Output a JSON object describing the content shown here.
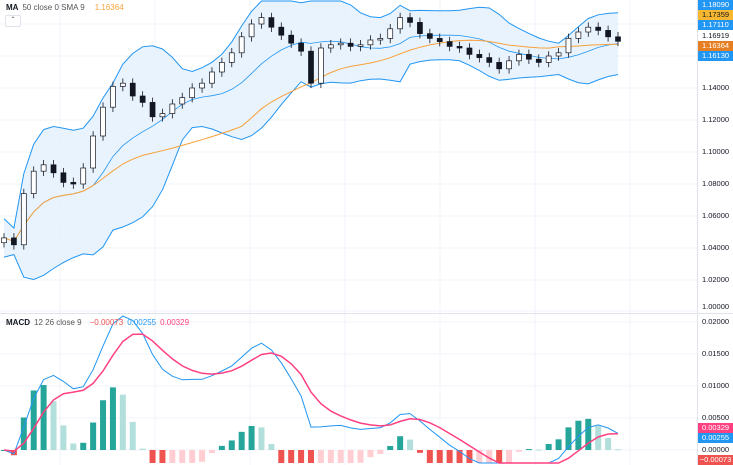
{
  "legend_price": {
    "name": "MA",
    "params": "50 close 0 SMA 9",
    "value": "1.16364"
  },
  "legend_macd": {
    "name": "MACD",
    "params": "12 26 close 9",
    "hist": "−0.00073",
    "macd": "0.00255",
    "signal": "0.00329"
  },
  "colors": {
    "ma": "#f7a13a",
    "bb": "#2196f3",
    "bb_fill": "#e3f0fc",
    "up": "#26a69a",
    "down": "#ef5350",
    "macd": "#2196f3",
    "signal": "#ff4081"
  },
  "price_tags": [
    {
      "label": "1.18090",
      "color": "#2196f3",
      "text": "#fff"
    },
    {
      "label": "1.17359",
      "color": "#f7b731",
      "text": "#131722"
    },
    {
      "label": "1.17110",
      "color": "#2196f3",
      "text": "#fff"
    },
    {
      "label": "1.16919",
      "color": "#ffffff",
      "text": "#131722"
    },
    {
      "label": "1.16364",
      "color": "#e67e22",
      "text": "#fff"
    },
    {
      "label": "1.16130",
      "color": "#2196f3",
      "text": "#fff"
    }
  ],
  "macd_tags": [
    {
      "label": "0.00329",
      "color": "#ff4081"
    },
    {
      "label": "0.00255",
      "color": "#2196f3"
    },
    {
      "label": "−0.00073",
      "color": "#ef5350"
    }
  ],
  "chart_data": [
    {
      "type": "candlestick",
      "price_axis_ticks": [
        "1.14000",
        "1.12000",
        "1.10000",
        "1.08000",
        "1.06000",
        "1.04000",
        "1.02000",
        "1.00000"
      ],
      "ylim": [
        1.0,
        1.19
      ],
      "grid": true,
      "closes": [
        1.0463,
        1.042,
        1.074,
        1.088,
        1.092,
        1.087,
        1.081,
        1.08,
        1.09,
        1.11,
        1.128,
        1.141,
        1.143,
        1.135,
        1.131,
        1.122,
        1.124,
        1.13,
        1.134,
        1.14,
        1.143,
        1.15,
        1.156,
        1.162,
        1.172,
        1.18,
        1.184,
        1.178,
        1.173,
        1.168,
        1.163,
        1.143,
        1.165,
        1.167,
        1.168,
        1.166,
        1.167,
        1.17,
        1.171,
        1.177,
        1.184,
        1.181,
        1.174,
        1.171,
        1.169,
        1.166,
        1.165,
        1.161,
        1.159,
        1.156,
        1.152,
        1.157,
        1.161,
        1.158,
        1.156,
        1.16,
        1.162,
        1.171,
        1.175,
        1.178,
        1.176,
        1.172,
        1.16919
      ]
    },
    {
      "type": "macd",
      "axis_ticks": [
        "0.02000",
        "0.01500",
        "0.01000",
        "0.00500",
        "0.00000"
      ],
      "ylim": [
        -0.002,
        0.021
      ]
    }
  ]
}
